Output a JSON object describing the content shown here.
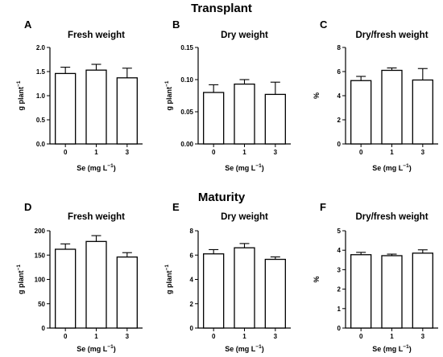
{
  "sections": [
    "Transplant",
    "Maturity"
  ],
  "chart_data": [
    {
      "panel": "A",
      "section": "Transplant",
      "type": "bar",
      "title": "Fresh weight",
      "xlabel": "Se (mg L⁻¹)",
      "ylabel": "g plant⁻¹",
      "categories": [
        "0",
        "1",
        "3"
      ],
      "values": [
        1.46,
        1.53,
        1.37
      ],
      "errors": [
        0.13,
        0.12,
        0.2
      ],
      "ylim": [
        0,
        2.0
      ],
      "yticks": [
        "0.0",
        "0.5",
        "1.0",
        "1.5",
        "2.0"
      ]
    },
    {
      "panel": "B",
      "section": "Transplant",
      "type": "bar",
      "title": "Dry weight",
      "xlabel": "Se (mg L⁻¹)",
      "ylabel": "g plant⁻¹",
      "categories": [
        "0",
        "1",
        "3"
      ],
      "values": [
        0.08,
        0.093,
        0.077
      ],
      "errors": [
        0.012,
        0.007,
        0.019
      ],
      "ylim": [
        0,
        0.15
      ],
      "yticks": [
        "0.00",
        "0.05",
        "0.10",
        "0.15"
      ]
    },
    {
      "panel": "C",
      "section": "Transplant",
      "type": "bar",
      "title": "Dry/fresh weight",
      "xlabel": "Se (mg L⁻¹)",
      "ylabel": "%",
      "categories": [
        "0",
        "1",
        "3"
      ],
      "values": [
        5.25,
        6.1,
        5.3
      ],
      "errors": [
        0.35,
        0.2,
        0.95
      ],
      "ylim": [
        0,
        8
      ],
      "yticks": [
        "0",
        "2",
        "4",
        "6",
        "8"
      ]
    },
    {
      "panel": "D",
      "section": "Maturity",
      "type": "bar",
      "title": "Fresh weight",
      "xlabel": "Se (mg L⁻¹)",
      "ylabel": "g plant⁻¹",
      "categories": [
        "0",
        "1",
        "3"
      ],
      "values": [
        162,
        178,
        146
      ],
      "errors": [
        11,
        12,
        9
      ],
      "ylim": [
        0,
        200
      ],
      "yticks": [
        "0",
        "50",
        "100",
        "150",
        "200"
      ]
    },
    {
      "panel": "E",
      "section": "Maturity",
      "type": "bar",
      "title": "Dry weight",
      "xlabel": "Se (mg L⁻¹)",
      "ylabel": "g plant⁻¹",
      "categories": [
        "0",
        "1",
        "3"
      ],
      "values": [
        6.1,
        6.6,
        5.65
      ],
      "errors": [
        0.35,
        0.35,
        0.2
      ],
      "ylim": [
        0,
        8
      ],
      "yticks": [
        "0",
        "2",
        "4",
        "6",
        "8"
      ]
    },
    {
      "panel": "F",
      "section": "Maturity",
      "type": "bar",
      "title": "Dry/fresh weight",
      "xlabel": "Se (mg L⁻¹)",
      "ylabel": "%",
      "categories": [
        "0",
        "1",
        "3"
      ],
      "values": [
        3.77,
        3.72,
        3.85
      ],
      "errors": [
        0.12,
        0.08,
        0.17
      ],
      "ylim": [
        0,
        5
      ],
      "yticks": [
        "0",
        "1",
        "2",
        "3",
        "4",
        "5"
      ]
    }
  ]
}
